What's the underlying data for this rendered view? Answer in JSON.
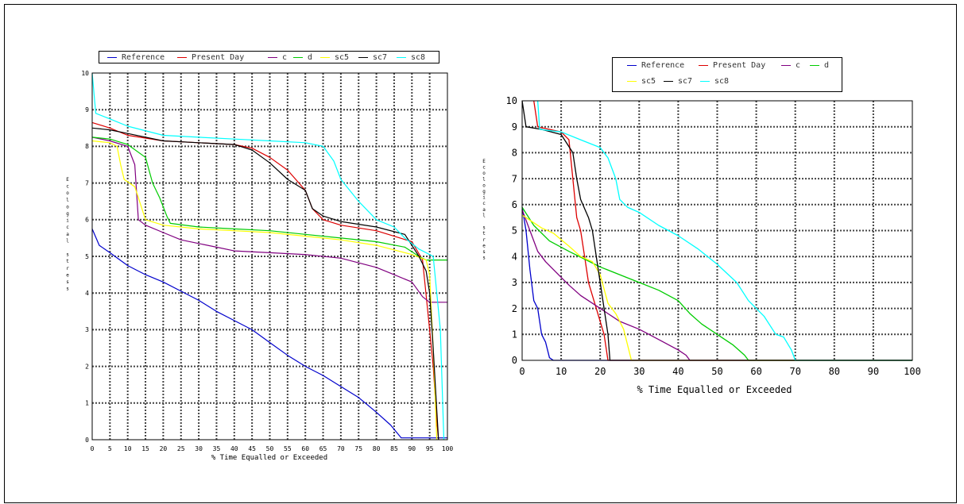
{
  "colors": {
    "Reference": "#0000cc",
    "Present Day": "#dd0000",
    "c": "#800080",
    "d": "#00cc00",
    "sc5": "#ffff00",
    "sc7": "#000000",
    "sc8": "#00ffff"
  },
  "chart_data": [
    {
      "type": "line",
      "xlabel": "% Time Equalled or Exceeded",
      "ylabel": "Ecological stress",
      "xlim": [
        0,
        100
      ],
      "ylim": [
        0,
        10
      ],
      "x_ticks": [
        "0",
        "5",
        "10",
        "15",
        "20",
        "25",
        "30",
        "35",
        "40",
        "45",
        "50",
        "55",
        "60",
        "65",
        "70",
        "75",
        "80",
        "85",
        "90",
        "95",
        "100"
      ],
      "y_ticks": [
        "0",
        "1",
        "2",
        "3",
        "4",
        "5",
        "6",
        "7",
        "8",
        "9",
        "10"
      ],
      "grid": true,
      "legend_position": "top",
      "legend": [
        "Reference",
        "Present Day",
        "c",
        "d",
        "sc5",
        "sc7",
        "sc8"
      ],
      "series": [
        {
          "name": "Reference",
          "points": [
            [
              0,
              5.75
            ],
            [
              2,
              5.3
            ],
            [
              5,
              5.1
            ],
            [
              10,
              4.75
            ],
            [
              15,
              4.5
            ],
            [
              20,
              4.3
            ],
            [
              25,
              4.05
            ],
            [
              30,
              3.8
            ],
            [
              35,
              3.5
            ],
            [
              40,
              3.25
            ],
            [
              45,
              3.0
            ],
            [
              50,
              2.65
            ],
            [
              55,
              2.3
            ],
            [
              60,
              2.0
            ],
            [
              65,
              1.75
            ],
            [
              70,
              1.45
            ],
            [
              75,
              1.15
            ],
            [
              80,
              0.75
            ],
            [
              84,
              0.4
            ],
            [
              87,
              0.05
            ],
            [
              100,
              0.05
            ]
          ]
        },
        {
          "name": "Present Day",
          "points": [
            [
              0,
              8.65
            ],
            [
              5,
              8.5
            ],
            [
              10,
              8.3
            ],
            [
              20,
              8.15
            ],
            [
              30,
              8.1
            ],
            [
              40,
              8.05
            ],
            [
              45,
              7.95
            ],
            [
              50,
              7.7
            ],
            [
              55,
              7.35
            ],
            [
              60,
              6.8
            ],
            [
              62,
              6.3
            ],
            [
              65,
              6.0
            ],
            [
              70,
              5.85
            ],
            [
              80,
              5.7
            ],
            [
              90,
              5.4
            ],
            [
              93,
              4.9
            ],
            [
              95,
              3.0
            ],
            [
              96,
              2.0
            ],
            [
              97,
              0.5
            ],
            [
              97.5,
              0
            ]
          ]
        },
        {
          "name": "c",
          "points": [
            [
              0,
              8.25
            ],
            [
              5,
              8.15
            ],
            [
              10,
              8.0
            ],
            [
              12,
              7.5
            ],
            [
              13,
              6.0
            ],
            [
              15,
              5.85
            ],
            [
              20,
              5.65
            ],
            [
              25,
              5.45
            ],
            [
              30,
              5.35
            ],
            [
              35,
              5.25
            ],
            [
              40,
              5.15
            ],
            [
              50,
              5.1
            ],
            [
              60,
              5.05
            ],
            [
              70,
              4.95
            ],
            [
              80,
              4.7
            ],
            [
              85,
              4.5
            ],
            [
              90,
              4.3
            ],
            [
              93,
              3.9
            ],
            [
              95,
              3.75
            ],
            [
              100,
              3.75
            ]
          ]
        },
        {
          "name": "d",
          "points": [
            [
              0,
              8.25
            ],
            [
              5,
              8.2
            ],
            [
              10,
              8.05
            ],
            [
              15,
              7.7
            ],
            [
              17,
              7.0
            ],
            [
              19,
              6.6
            ],
            [
              21,
              6.1
            ],
            [
              22,
              5.9
            ],
            [
              30,
              5.8
            ],
            [
              40,
              5.75
            ],
            [
              50,
              5.7
            ],
            [
              60,
              5.6
            ],
            [
              70,
              5.5
            ],
            [
              80,
              5.4
            ],
            [
              88,
              5.25
            ],
            [
              92,
              5.0
            ],
            [
              94,
              4.9
            ],
            [
              100,
              4.9
            ]
          ]
        },
        {
          "name": "sc5",
          "points": [
            [
              0,
              8.15
            ],
            [
              5,
              8.1
            ],
            [
              7,
              8.0
            ],
            [
              8,
              7.5
            ],
            [
              9,
              7.1
            ],
            [
              12,
              6.9
            ],
            [
              13,
              6.6
            ],
            [
              15,
              6.0
            ],
            [
              20,
              5.85
            ],
            [
              30,
              5.75
            ],
            [
              40,
              5.7
            ],
            [
              50,
              5.65
            ],
            [
              60,
              5.55
            ],
            [
              70,
              5.45
            ],
            [
              80,
              5.3
            ],
            [
              90,
              5.05
            ],
            [
              94,
              4.9
            ],
            [
              95,
              4.5
            ],
            [
              96,
              2.5
            ],
            [
              97,
              0
            ]
          ]
        },
        {
          "name": "sc7",
          "points": [
            [
              0,
              8.5
            ],
            [
              5,
              8.45
            ],
            [
              10,
              8.35
            ],
            [
              20,
              8.15
            ],
            [
              30,
              8.1
            ],
            [
              40,
              8.05
            ],
            [
              45,
              7.9
            ],
            [
              50,
              7.55
            ],
            [
              55,
              7.1
            ],
            [
              60,
              6.8
            ],
            [
              62,
              6.3
            ],
            [
              65,
              6.1
            ],
            [
              70,
              5.95
            ],
            [
              80,
              5.8
            ],
            [
              88,
              5.6
            ],
            [
              92,
              5.0
            ],
            [
              94,
              4.6
            ],
            [
              95,
              4.0
            ],
            [
              96,
              2.5
            ],
            [
              97,
              0.8
            ],
            [
              97.5,
              0
            ]
          ]
        },
        {
          "name": "sc8",
          "points": [
            [
              0,
              10.0
            ],
            [
              1,
              8.9
            ],
            [
              5,
              8.75
            ],
            [
              10,
              8.55
            ],
            [
              20,
              8.3
            ],
            [
              30,
              8.25
            ],
            [
              40,
              8.2
            ],
            [
              50,
              8.15
            ],
            [
              60,
              8.1
            ],
            [
              65,
              8.0
            ],
            [
              68,
              7.6
            ],
            [
              70,
              7.1
            ],
            [
              75,
              6.5
            ],
            [
              80,
              6.0
            ],
            [
              85,
              5.8
            ],
            [
              88,
              5.5
            ],
            [
              92,
              5.2
            ],
            [
              96,
              5.0
            ],
            [
              98,
              3.0
            ],
            [
              99,
              0
            ]
          ]
        }
      ]
    },
    {
      "type": "line",
      "xlabel": "% Time Equalled or Exceeded",
      "ylabel": "Ecological stress",
      "xlim": [
        0,
        100
      ],
      "ylim": [
        0,
        10
      ],
      "x_ticks": [
        "0",
        "10",
        "20",
        "30",
        "40",
        "50",
        "60",
        "70",
        "80",
        "90",
        "100"
      ],
      "y_ticks": [
        "0",
        "1",
        "2",
        "3",
        "4",
        "5",
        "6",
        "7",
        "8",
        "9",
        "10"
      ],
      "grid": true,
      "legend_position": "top",
      "legend": [
        "Reference",
        "Present Day",
        "c",
        "d",
        "sc5",
        "sc7",
        "sc8"
      ],
      "series": [
        {
          "name": "Reference",
          "points": [
            [
              0,
              5.9
            ],
            [
              1,
              5.0
            ],
            [
              2,
              3.5
            ],
            [
              3,
              2.3
            ],
            [
              4,
              2.0
            ],
            [
              5,
              1.0
            ],
            [
              6,
              0.7
            ],
            [
              7,
              0.1
            ],
            [
              8,
              0
            ],
            [
              100,
              0
            ]
          ]
        },
        {
          "name": "Present Day",
          "points": [
            [
              3,
              10.0
            ],
            [
              4,
              9.0
            ],
            [
              10,
              8.8
            ],
            [
              12,
              8.5
            ],
            [
              13,
              7.0
            ],
            [
              14,
              5.5
            ],
            [
              15,
              5.0
            ],
            [
              16,
              4.0
            ],
            [
              17,
              3.0
            ],
            [
              18,
              2.5
            ],
            [
              19,
              2.0
            ],
            [
              20,
              1.5
            ],
            [
              21,
              1.0
            ],
            [
              22,
              0
            ],
            [
              100,
              0
            ]
          ]
        },
        {
          "name": "c",
          "points": [
            [
              0,
              5.8
            ],
            [
              2,
              5.0
            ],
            [
              4,
              4.2
            ],
            [
              6,
              3.8
            ],
            [
              8,
              3.5
            ],
            [
              10,
              3.2
            ],
            [
              12,
              2.9
            ],
            [
              15,
              2.5
            ],
            [
              18,
              2.2
            ],
            [
              20,
              2.0
            ],
            [
              25,
              1.5
            ],
            [
              30,
              1.2
            ],
            [
              35,
              0.8
            ],
            [
              40,
              0.4
            ],
            [
              42,
              0.2
            ],
            [
              43,
              0
            ],
            [
              100,
              0
            ]
          ]
        },
        {
          "name": "d",
          "points": [
            [
              0,
              5.9
            ],
            [
              3,
              5.2
            ],
            [
              7,
              4.6
            ],
            [
              12,
              4.2
            ],
            [
              16,
              3.9
            ],
            [
              20,
              3.6
            ],
            [
              25,
              3.3
            ],
            [
              30,
              3.0
            ],
            [
              35,
              2.7
            ],
            [
              40,
              2.3
            ],
            [
              43,
              1.8
            ],
            [
              46,
              1.4
            ],
            [
              50,
              1.0
            ],
            [
              54,
              0.6
            ],
            [
              57,
              0.2
            ],
            [
              58,
              0
            ],
            [
              100,
              0
            ]
          ]
        },
        {
          "name": "sc5",
          "points": [
            [
              0,
              5.6
            ],
            [
              3,
              5.3
            ],
            [
              5,
              5.1
            ],
            [
              8,
              4.9
            ],
            [
              12,
              4.4
            ],
            [
              15,
              4.0
            ],
            [
              18,
              3.8
            ],
            [
              20,
              3.3
            ],
            [
              22,
              2.2
            ],
            [
              24,
              1.8
            ],
            [
              26,
              1.2
            ],
            [
              27,
              0.6
            ],
            [
              28,
              0
            ],
            [
              100,
              0
            ]
          ]
        },
        {
          "name": "sc7",
          "points": [
            [
              0,
              10.0
            ],
            [
              1,
              9.0
            ],
            [
              5,
              8.9
            ],
            [
              10,
              8.7
            ],
            [
              13,
              8.0
            ],
            [
              14,
              7.0
            ],
            [
              15,
              6.2
            ],
            [
              17,
              5.5
            ],
            [
              18,
              5.0
            ],
            [
              19,
              4.0
            ],
            [
              20,
              3.0
            ],
            [
              21,
              2.0
            ],
            [
              22,
              1.0
            ],
            [
              22.5,
              0
            ],
            [
              100,
              0
            ]
          ]
        },
        {
          "name": "sc8",
          "points": [
            [
              4,
              10.0
            ],
            [
              4.5,
              8.9
            ],
            [
              10,
              8.8
            ],
            [
              15,
              8.5
            ],
            [
              20,
              8.2
            ],
            [
              22,
              7.8
            ],
            [
              24,
              7.0
            ],
            [
              25,
              6.2
            ],
            [
              27,
              5.9
            ],
            [
              30,
              5.7
            ],
            [
              35,
              5.2
            ],
            [
              40,
              4.8
            ],
            [
              45,
              4.3
            ],
            [
              50,
              3.7
            ],
            [
              55,
              3.0
            ],
            [
              58,
              2.3
            ],
            [
              62,
              1.7
            ],
            [
              65,
              1.0
            ],
            [
              67,
              0.9
            ],
            [
              69,
              0.4
            ],
            [
              70,
              0
            ],
            [
              100,
              0
            ]
          ]
        }
      ]
    }
  ]
}
